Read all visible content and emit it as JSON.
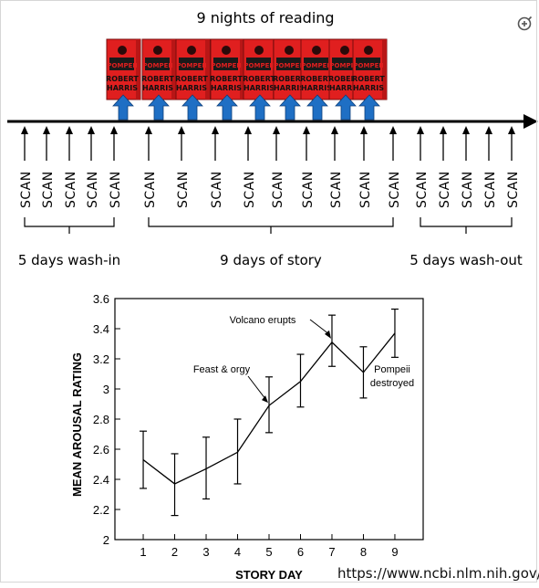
{
  "figure": {
    "title": "9 nights of reading",
    "scan_label": "SCAN",
    "book_lines": [
      "ROBERT",
      "HARRIS"
    ],
    "book_title": "POMPEII",
    "phases": [
      {
        "label": "5 days wash-in",
        "scans": 5
      },
      {
        "label": "9 days of story",
        "scans": 9
      },
      {
        "label": "5 days wash-out",
        "scans": 5
      }
    ],
    "nights": 9
  },
  "chart_data": {
    "type": "line",
    "xlabel": "STORY DAY",
    "ylabel": "MEAN AROUSAL RATING",
    "x": [
      1,
      2,
      3,
      4,
      5,
      6,
      7,
      8,
      9
    ],
    "xlim": [
      0.1,
      9.9
    ],
    "ylim": [
      2,
      3.6
    ],
    "yticks": [
      "2",
      "2.2",
      "2.4",
      "2.6",
      "2.8",
      "3",
      "3.2",
      "3.4",
      "3.6"
    ],
    "xticks": [
      "1",
      "2",
      "3",
      "4",
      "5",
      "6",
      "7",
      "8",
      "9"
    ],
    "series": [
      {
        "values": [
          2.53,
          2.37,
          2.47,
          2.58,
          2.89,
          3.05,
          3.31,
          3.11,
          3.37
        ],
        "error_low": [
          2.34,
          2.16,
          2.27,
          2.37,
          2.71,
          2.88,
          3.15,
          2.94,
          3.21
        ],
        "error_high": [
          2.72,
          2.57,
          2.68,
          2.8,
          3.08,
          3.23,
          3.49,
          3.28,
          3.53
        ]
      }
    ],
    "annotations": [
      {
        "text": "Feast & orgy",
        "x": 5
      },
      {
        "text": "Volcano erupts",
        "x": 7
      },
      {
        "text": "Pompeii\ndestroyed",
        "x": 9
      }
    ],
    "grid": false
  },
  "source_text": "https://www.ncbi.nlm.nih.gov/",
  "colors": {
    "book_red": "#e01f1f",
    "arrow_blue": "#1f6fc4",
    "line": "#111111"
  },
  "zoom_icon": "zoom-in-icon"
}
